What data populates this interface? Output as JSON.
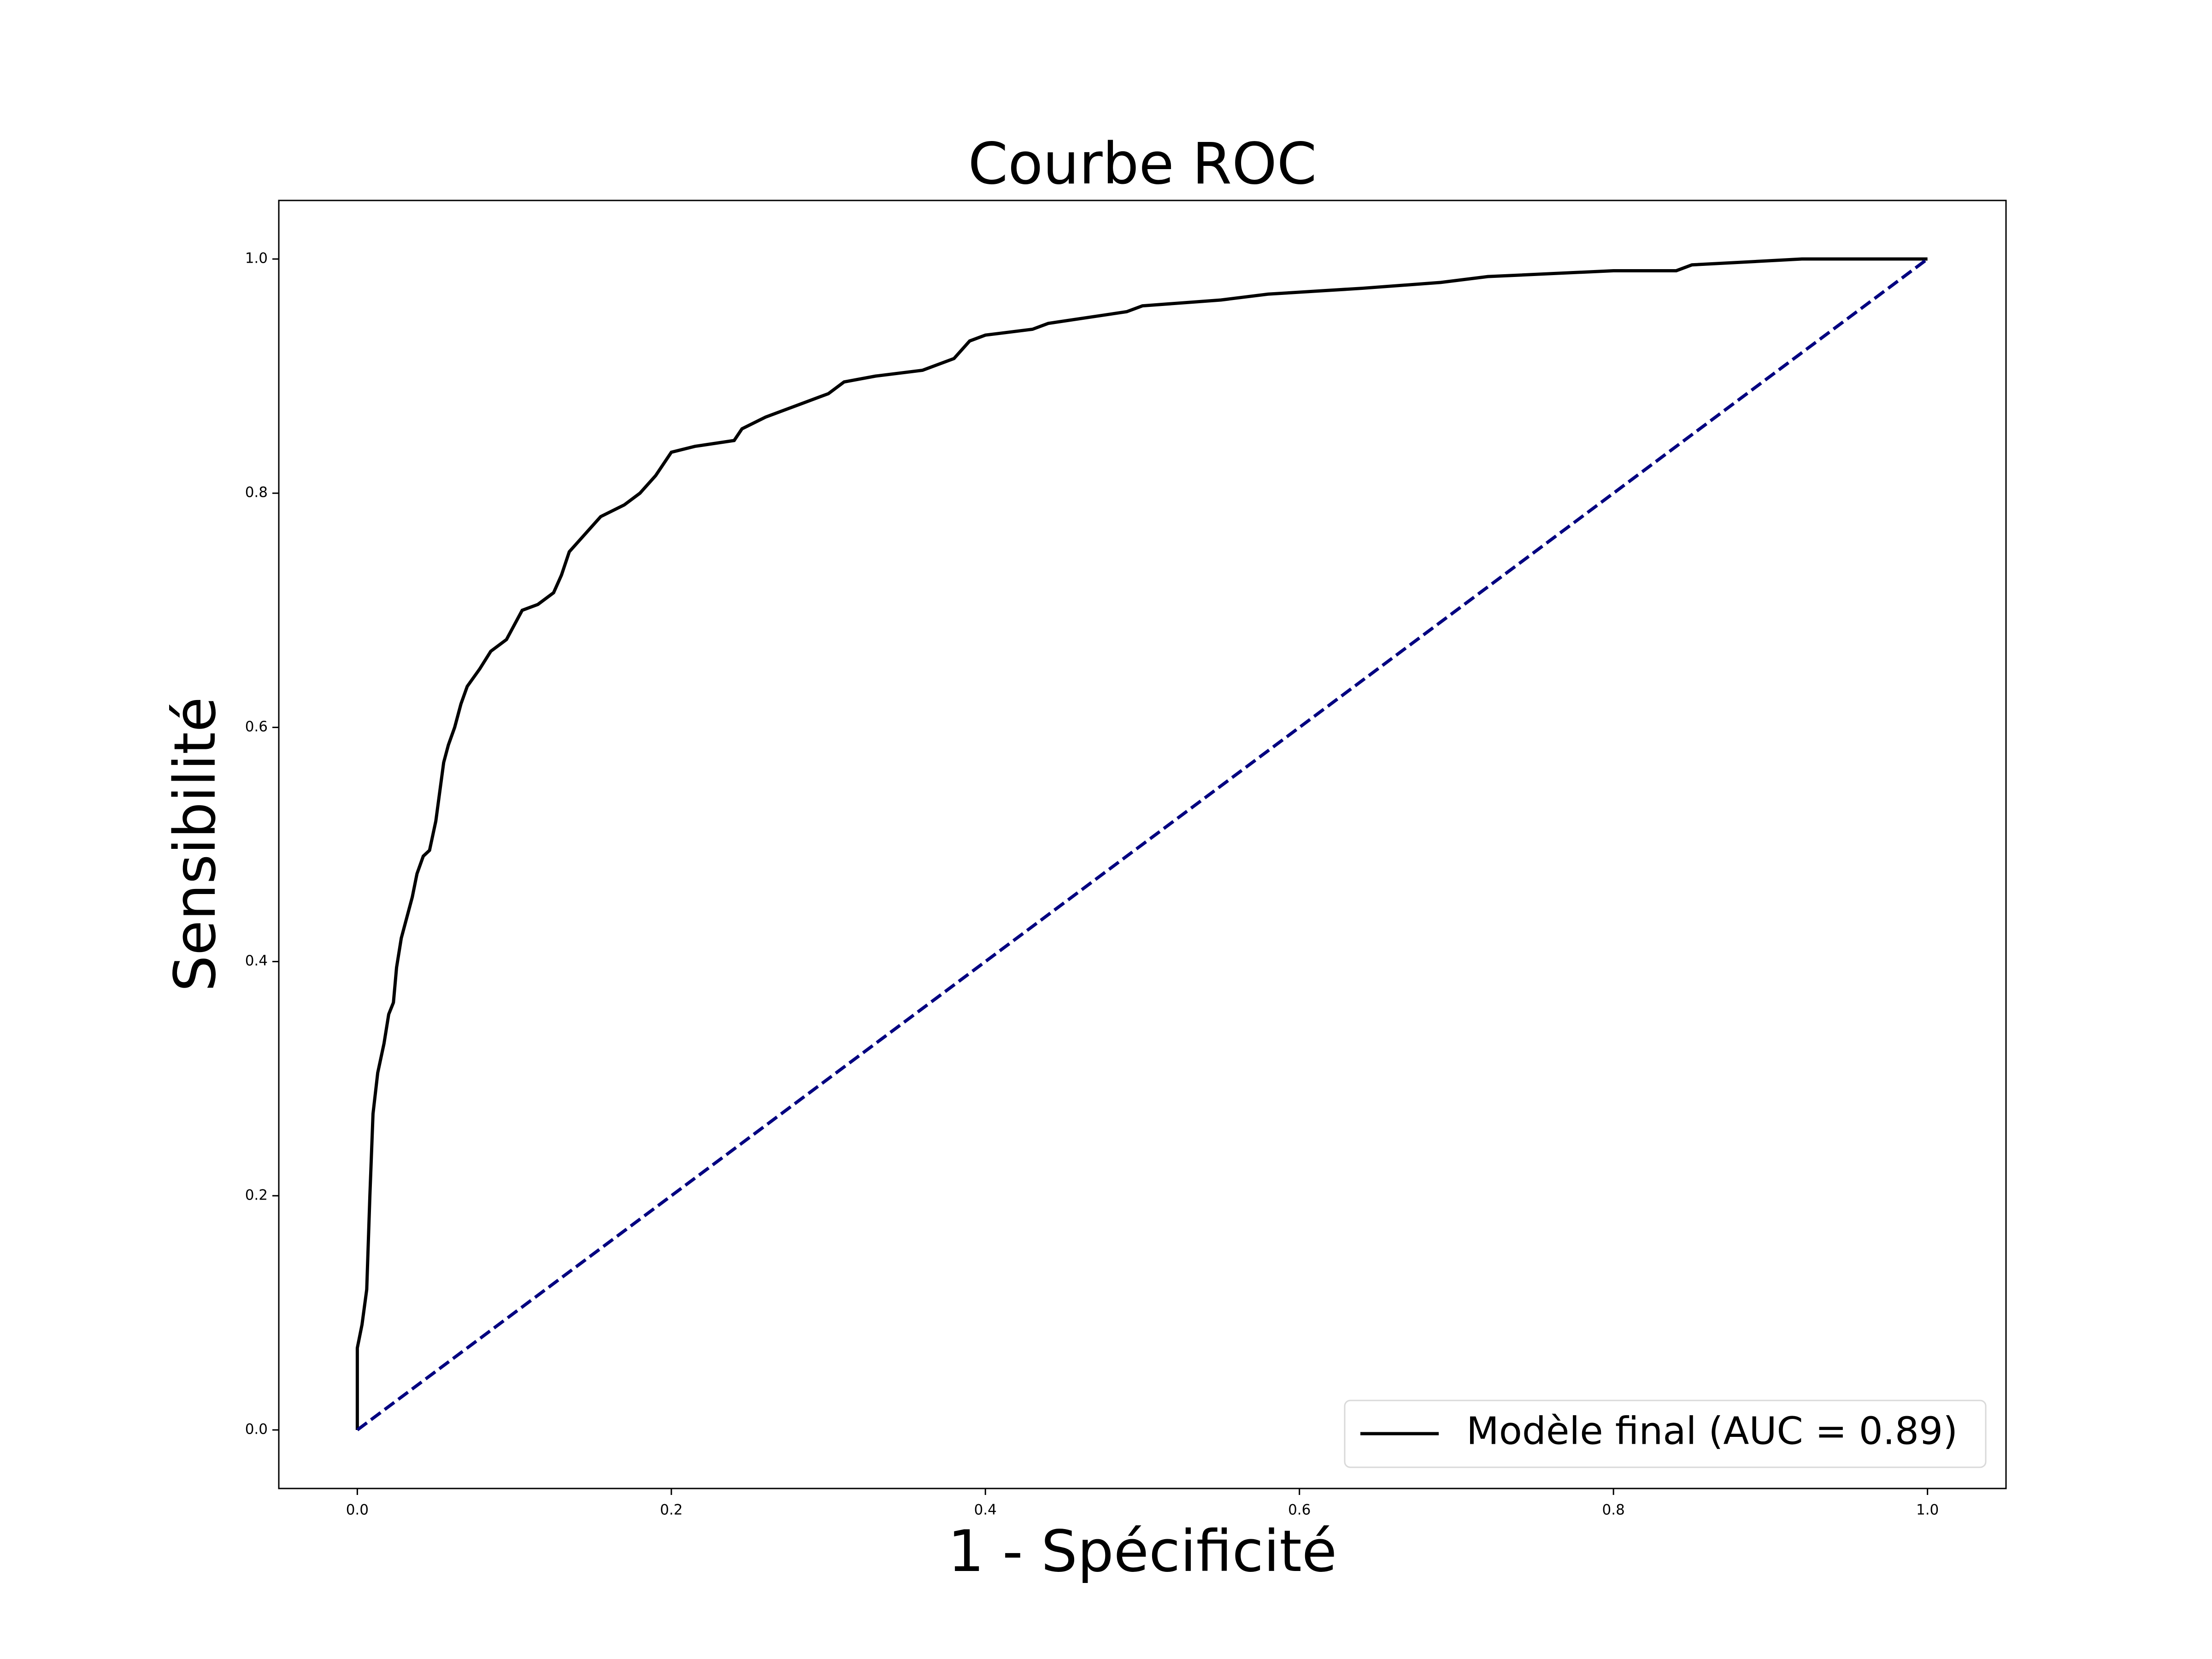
{
  "chart_data": {
    "type": "line",
    "title": "Courbe ROC",
    "xlabel": "1 - Spécificité",
    "ylabel": "Sensibilité",
    "xlim": [
      -0.05,
      1.05
    ],
    "ylim": [
      -0.05,
      1.05
    ],
    "xticks": [
      {
        "value": 0,
        "label": "0.0"
      },
      0.2,
      0.4,
      0.6,
      0.8,
      {
        "value": 1,
        "label": "1.0"
      }
    ],
    "yticks": [
      {
        "value": 0,
        "label": "0.0"
      },
      0.2,
      0.4,
      0.6,
      0.8,
      {
        "value": 1,
        "label": "1.0"
      }
    ],
    "grid": false,
    "legend": "lower right",
    "series": [
      {
        "name": "Modèle final (AUC = 0.89)",
        "color": "#000000",
        "dash": false,
        "x": [
          0,
          0,
          0.003,
          0.006,
          0.008,
          0.01,
          0.013,
          0.017,
          0.02,
          0.023,
          0.025,
          0.028,
          0.032,
          0.035,
          0.038,
          0.042,
          0.046,
          0.05,
          0.055,
          0.058,
          0.062,
          0.066,
          0.07,
          0.078,
          0.085,
          0.095,
          0.105,
          0.115,
          0.125,
          0.13,
          0.135,
          0.145,
          0.155,
          0.17,
          0.18,
          0.19,
          0.2,
          0.215,
          0.24,
          0.245,
          0.26,
          0.28,
          0.3,
          0.31,
          0.33,
          0.36,
          0.38,
          0.39,
          0.4,
          0.43,
          0.44,
          0.49,
          0.5,
          0.55,
          0.58,
          0.64,
          0.69,
          0.72,
          0.8,
          0.84,
          0.85,
          0.92,
          1.0
        ],
        "values": [
          0,
          0.07,
          0.09,
          0.12,
          0.2,
          0.27,
          0.305,
          0.33,
          0.355,
          0.365,
          0.395,
          0.42,
          0.44,
          0.455,
          0.475,
          0.49,
          0.495,
          0.52,
          0.57,
          0.585,
          0.6,
          0.62,
          0.635,
          0.65,
          0.665,
          0.675,
          0.7,
          0.705,
          0.715,
          0.73,
          0.75,
          0.765,
          0.78,
          0.79,
          0.8,
          0.815,
          0.835,
          0.84,
          0.845,
          0.855,
          0.865,
          0.875,
          0.885,
          0.895,
          0.9,
          0.905,
          0.915,
          0.93,
          0.935,
          0.94,
          0.945,
          0.955,
          0.96,
          0.965,
          0.97,
          0.975,
          0.98,
          0.985,
          0.99,
          0.99,
          0.995,
          1.0,
          1.0
        ]
      },
      {
        "color": "#000080",
        "dash": true,
        "x": [
          0,
          1
        ],
        "values": [
          0,
          1
        ]
      }
    ]
  }
}
